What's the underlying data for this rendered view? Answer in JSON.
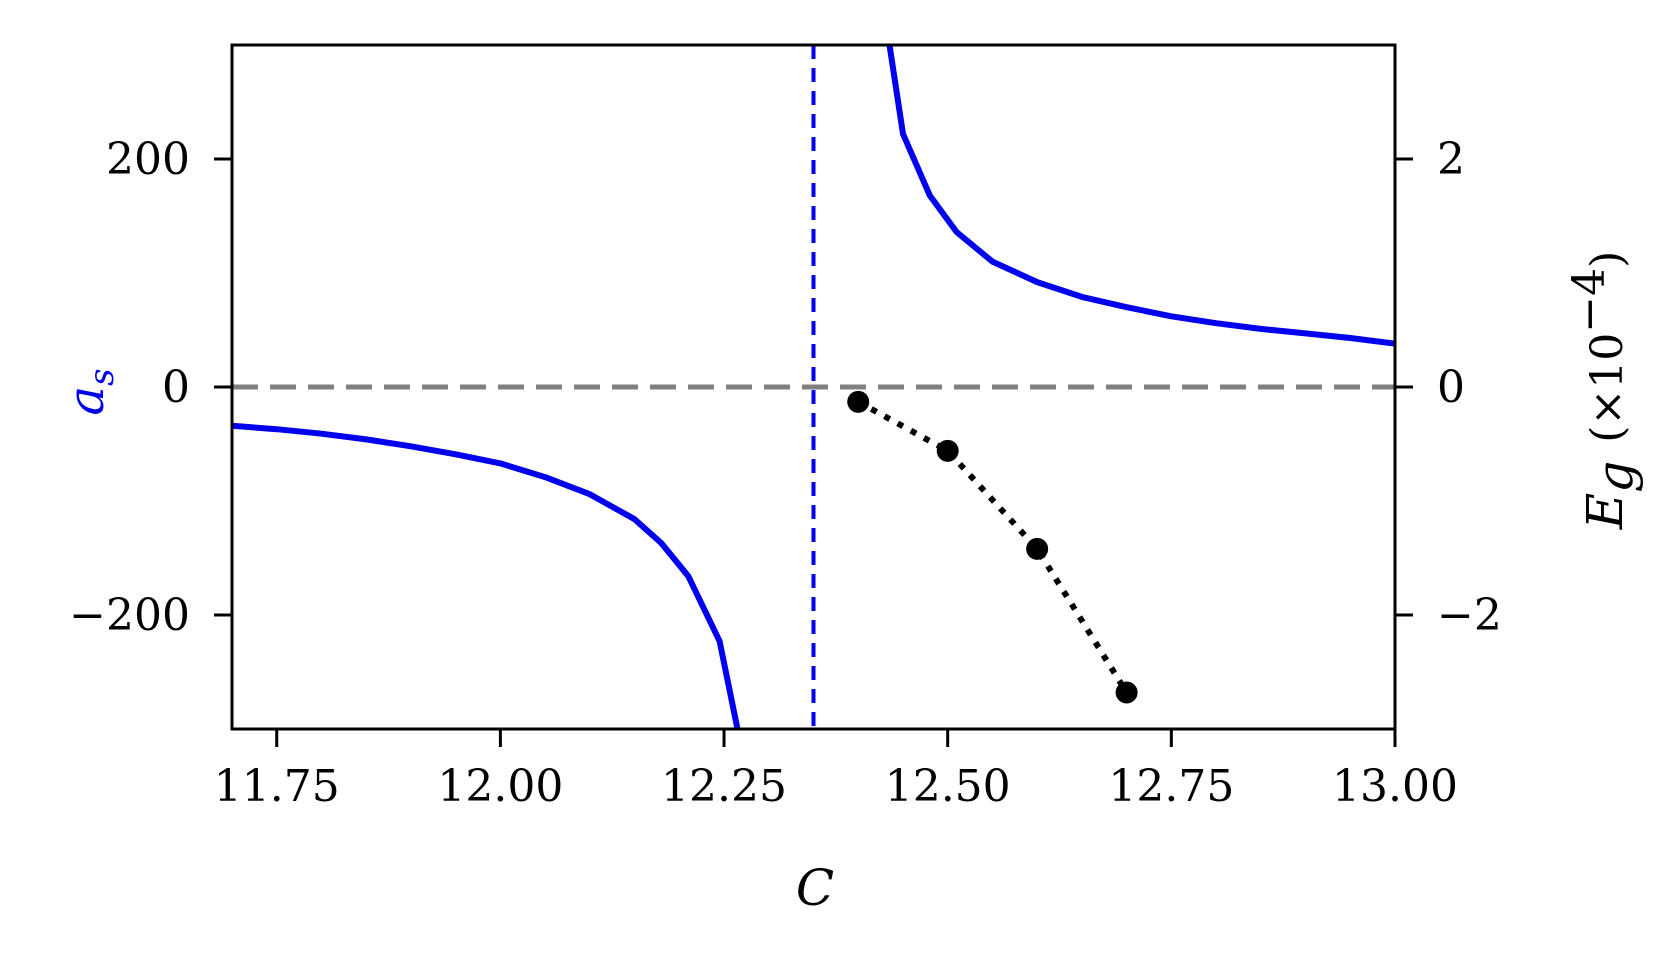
{
  "chart_data": {
    "type": "line",
    "xlabel": "C",
    "ylabel_left": "a",
    "ylabel_left_subscript": "s",
    "ylabel_left_color": "#0000ee",
    "ylabel_right": "E",
    "ylabel_right_subscript": "g",
    "ylabel_right_multiplier": "(×10",
    "ylabel_right_exponent": "−4",
    "ylabel_right_close": ")",
    "xlim": [
      11.7,
      13.0
    ],
    "ylim_left": [
      -300,
      300
    ],
    "ylim_right": [
      -3,
      3
    ],
    "x_ticks": [
      11.75,
      12.0,
      12.25,
      12.5,
      12.75,
      13.0
    ],
    "x_tick_labels": [
      "11.75",
      "12.00",
      "12.25",
      "12.50",
      "12.75",
      "13.00"
    ],
    "y_left_ticks": [
      -200,
      0,
      200
    ],
    "y_left_tick_labels": [
      "−200",
      "0",
      "200"
    ],
    "y_right_ticks": [
      -2,
      0,
      2
    ],
    "y_right_tick_labels": [
      "−2",
      "0",
      "2"
    ],
    "grid": false,
    "series": [
      {
        "axis": "left",
        "color": "#0000ee",
        "style": "solid",
        "x": [
          11.7,
          11.75,
          11.8,
          11.85,
          11.9,
          11.95,
          12.0,
          12.05,
          12.1,
          12.15,
          12.18,
          12.21,
          12.245,
          12.265
        ],
        "y": [
          -34,
          -37,
          -41,
          -46,
          -52,
          -59,
          -67,
          -79,
          -94,
          -116,
          -137,
          -166,
          -223,
          -300
        ]
      },
      {
        "axis": "left",
        "color": "#0000ee",
        "style": "solid",
        "x": [
          12.435,
          12.45,
          12.48,
          12.51,
          12.55,
          12.6,
          12.65,
          12.7,
          12.75,
          12.8,
          12.85,
          12.9,
          12.95,
          13.0
        ],
        "y": [
          300,
          222,
          168,
          136,
          110,
          92,
          79,
          70,
          62,
          56,
          51,
          47,
          43,
          38
        ]
      },
      {
        "axis": "right",
        "color": "#000000",
        "style": "dotted",
        "markers": true,
        "x": [
          12.4,
          12.5,
          12.6,
          12.7
        ],
        "y": [
          -0.13,
          -0.56,
          -1.42,
          -2.68
        ]
      }
    ],
    "reference_lines": [
      {
        "orientation": "vertical",
        "value": 12.35,
        "color": "#0000ee",
        "style": "dashed"
      },
      {
        "orientation": "horizontal",
        "value": 0,
        "color": "#808080",
        "style": "dashed"
      }
    ]
  }
}
